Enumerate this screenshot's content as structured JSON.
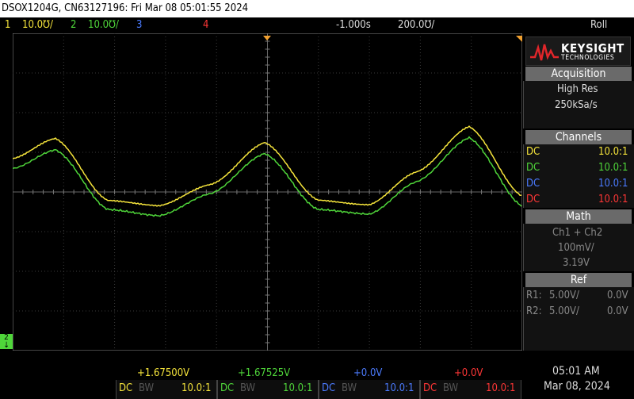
{
  "title_bar": {
    "text": "DSOX1204G, CN63127196: Fri Mar 08 05:01:55 2024"
  },
  "channel_bar": {
    "ch1_num": "1",
    "ch1_scale": "10.0℧/",
    "ch2_num": "2",
    "ch2_scale": "10.0℧/",
    "ch3_num": "3",
    "ch4_num": "4",
    "time_delay": "-1.000s",
    "time_scale": "200.0℧/",
    "mode": "Roll"
  },
  "waveform": {
    "ch1_color": "#f5e43b",
    "ch2_color": "#4fd63a",
    "ground_marker": "2"
  },
  "logo": {
    "name": "KEYSIGHT",
    "sub": "TECHNOLOGIES"
  },
  "acquisition": {
    "header": "Acquisition",
    "mode": "High Res",
    "rate": "250kSa/s"
  },
  "channels": {
    "header": "Channels",
    "rows": [
      {
        "coupling": "DC",
        "probe": "10.0:1"
      },
      {
        "coupling": "DC",
        "probe": "10.0:1"
      },
      {
        "coupling": "DC",
        "probe": "10.0:1"
      },
      {
        "coupling": "DC",
        "probe": "10.0:1"
      }
    ]
  },
  "math": {
    "header": "Math",
    "func": "Ch1 + Ch2",
    "scale": "100mV/",
    "offset": "3.19V"
  },
  "ref": {
    "header": "Ref",
    "r1_label": "R1:",
    "r1_scale": "5.00V/",
    "r1_offset": "0.0V",
    "r2_label": "R2:",
    "r2_scale": "5.00V/",
    "r2_offset": "0.0V"
  },
  "bottom": {
    "ch1_offset": "+1.67500V",
    "ch2_offset": "+1.67525V",
    "ch3_offset": "+0.0V",
    "ch4_offset": "+0.0V",
    "coupling": "DC",
    "bw": "BW",
    "probe": "10.0:1",
    "time": "05:01 AM",
    "date": "Mar 08, 2024"
  }
}
